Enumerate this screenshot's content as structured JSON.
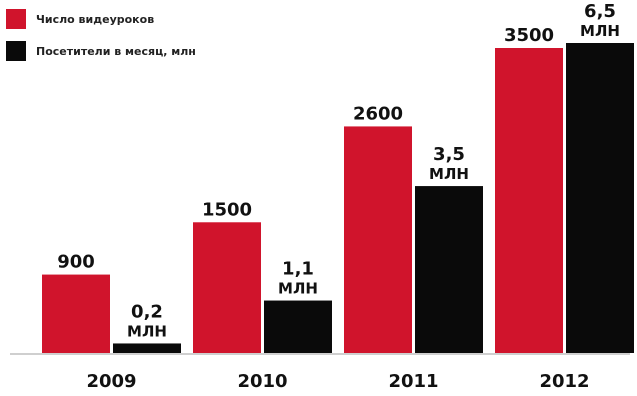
{
  "chart_data": {
    "type": "bar",
    "categories": [
      "2009",
      "2010",
      "2011",
      "2012"
    ],
    "series": [
      {
        "name": "Число видеуроков",
        "values": [
          900,
          1500,
          2600,
          3500
        ],
        "labels": [
          [
            "900"
          ],
          [
            "1500"
          ],
          [
            "2600"
          ],
          [
            "3500"
          ]
        ],
        "color": "#d0142c"
      },
      {
        "name": "Посетители в месяц, млн",
        "values": [
          0.2,
          1.1,
          3.5,
          6.5
        ],
        "labels": [
          [
            "0,2",
            "МЛН"
          ],
          [
            "1,1",
            "МЛН"
          ],
          [
            "3,5",
            "МЛН"
          ],
          [
            "6,5",
            "МЛН"
          ]
        ],
        "color": "#0a0a0a"
      }
    ],
    "title": "",
    "xlabel": "",
    "ylabel": "",
    "legend": "top-left",
    "grid": false
  }
}
